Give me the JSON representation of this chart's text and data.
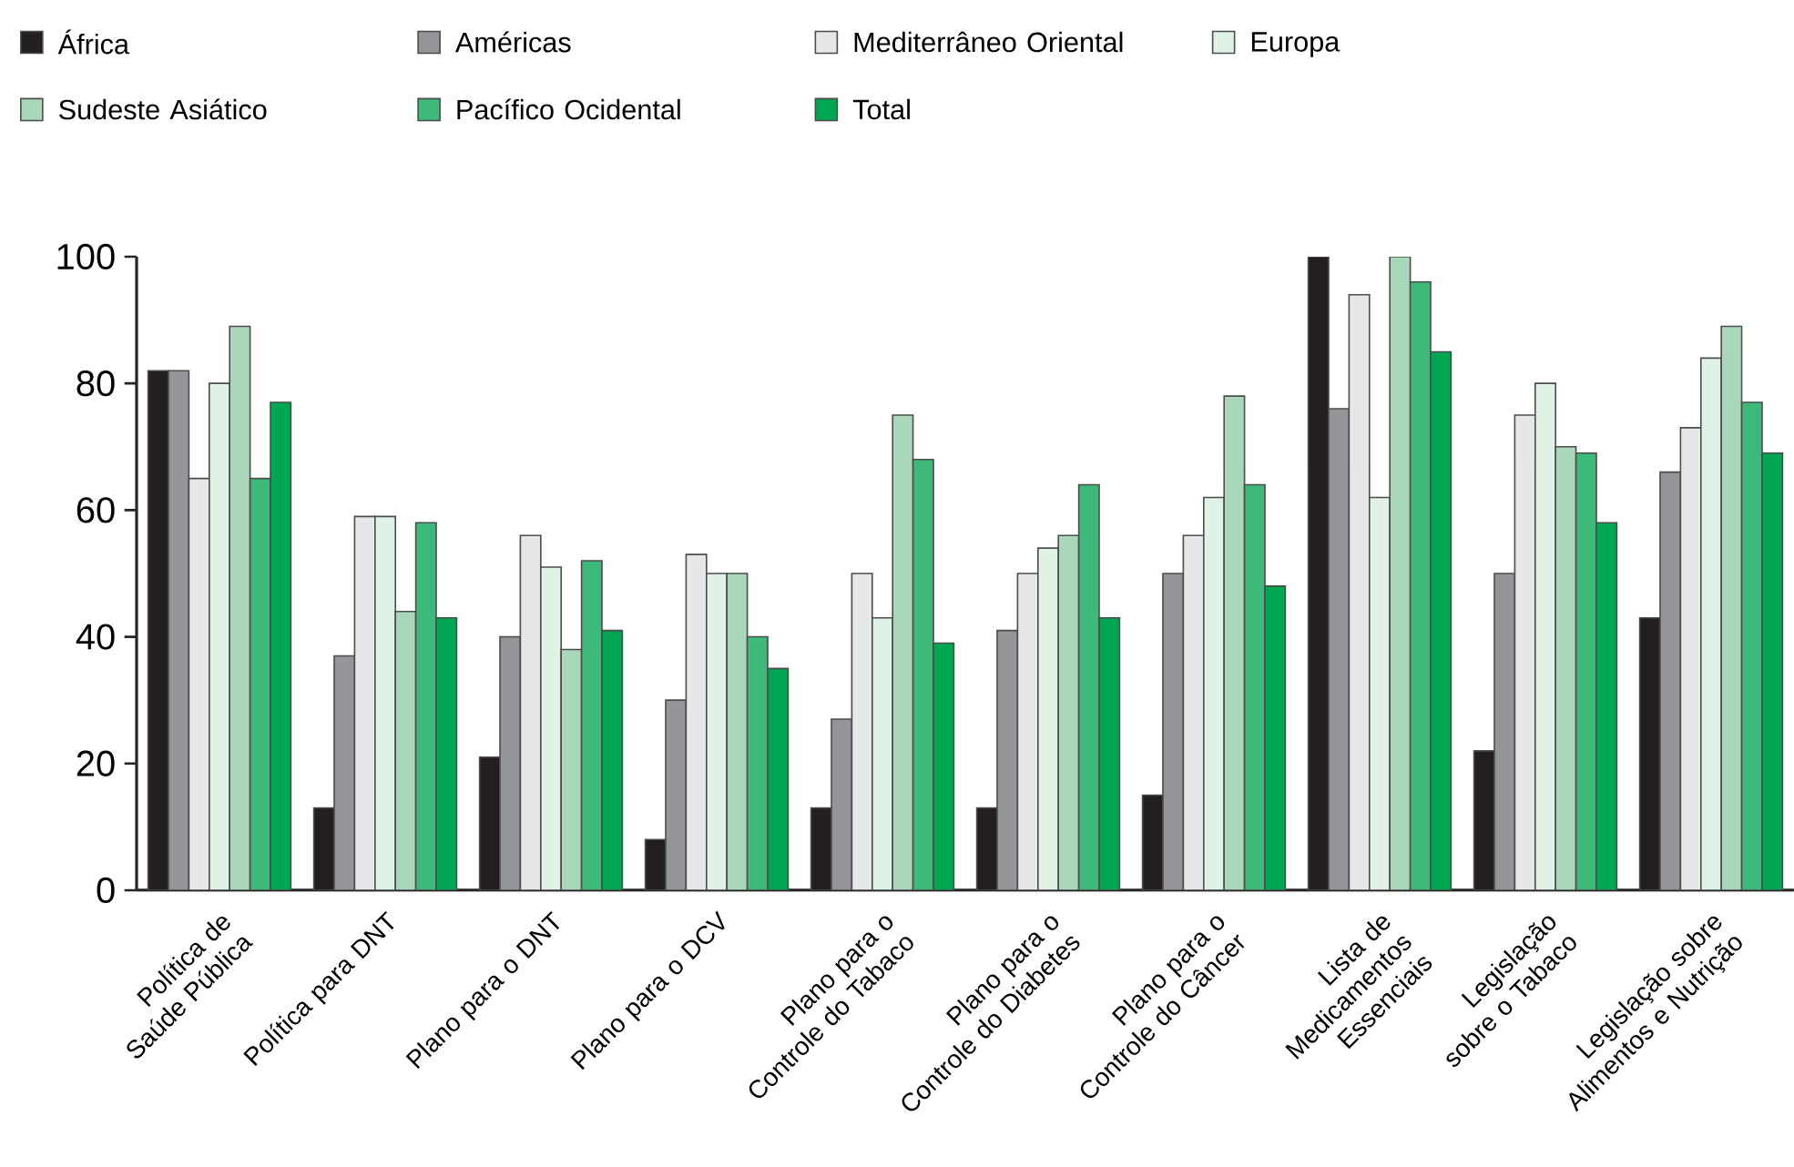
{
  "chart_data": {
    "type": "bar",
    "categories": [
      "Política de Saúde Pública",
      "Política para DNT",
      "Plano para o DNT",
      "Plano para o DCV",
      "Plano para o Controle do Tabaco",
      "Plano para o Controle do Diabetes",
      "Plano para o Controle do Câncer",
      "Lista de Medicamentos Essenciais",
      "Legislação sobre o Tabaco",
      "Legislação sobre Alimentos e Nutrição"
    ],
    "series": [
      {
        "name": "África",
        "color": "#231f20",
        "values": [
          82,
          13,
          21,
          8,
          13,
          13,
          15,
          100,
          22,
          43
        ]
      },
      {
        "name": "Américas",
        "color": "#939598",
        "values": [
          82,
          37,
          40,
          30,
          27,
          41,
          50,
          76,
          50,
          66
        ]
      },
      {
        "name": "Mediterrâneo Oriental",
        "color": "#e6e7e8",
        "values": [
          65,
          59,
          56,
          53,
          50,
          50,
          56,
          94,
          75,
          73
        ]
      },
      {
        "name": "Europa",
        "color": "#e0f2e6",
        "values": [
          80,
          59,
          51,
          50,
          43,
          54,
          62,
          62,
          80,
          84
        ]
      },
      {
        "name": "Sudeste Asiático",
        "color": "#a8d8b9",
        "values": [
          89,
          44,
          38,
          50,
          75,
          56,
          78,
          100,
          70,
          89
        ]
      },
      {
        "name": "Pacífico Ocidental",
        "color": "#3dba7a",
        "values": [
          65,
          58,
          52,
          40,
          68,
          64,
          64,
          96,
          69,
          77
        ]
      },
      {
        "name": "Total",
        "color": "#00a651",
        "values": [
          77,
          43,
          41,
          35,
          39,
          43,
          48,
          85,
          58,
          69
        ]
      }
    ],
    "ylim": [
      0,
      100
    ],
    "yticks": [
      0,
      20,
      40,
      60,
      80,
      100
    ],
    "grid": false,
    "legend": "top left"
  }
}
